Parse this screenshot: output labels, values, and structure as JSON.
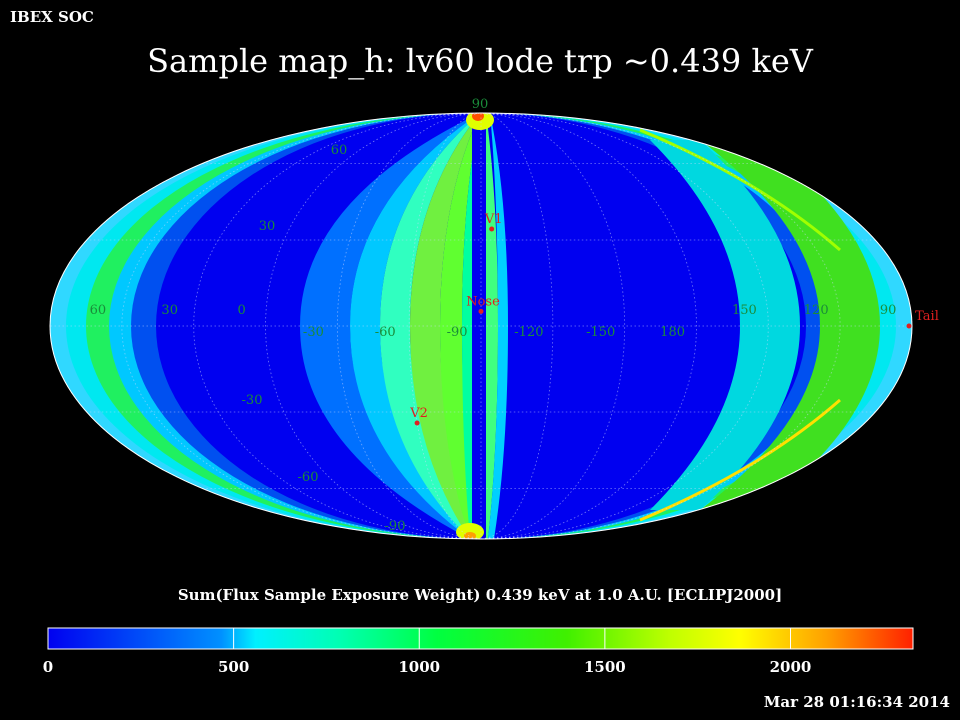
{
  "header": {
    "org": "IBEX SOC",
    "title": "Sample map_h: lv60 lode trp ~0.439 keV"
  },
  "map": {
    "projection": "mollweide",
    "coordinate_frame": "ECLIPJ2000",
    "lat_labels": [
      "90",
      "60",
      "30",
      "-30",
      "-60",
      "-90"
    ],
    "lon_labels": [
      "60",
      "30",
      "0",
      "-30",
      "-60",
      "-90",
      "-120",
      "-150",
      "180",
      "150",
      "120",
      "90"
    ],
    "markers": [
      {
        "label": "V1",
        "lon": -105,
        "lat": 34
      },
      {
        "label": "Nose",
        "lon": -100,
        "lat": 5
      },
      {
        "label": "V2",
        "lon": -70,
        "lat": -34
      },
      {
        "label": "Tail",
        "lon": 75,
        "lat": 0
      }
    ],
    "marker_color": "#e02020",
    "grid_label_color": "#1a8c3a"
  },
  "colorbar": {
    "title": "Sum(Flux Sample Exposure Weight)  0.439 keV at 1.0 A.U. [ECLIPJ2000]",
    "ticks": [
      {
        "label": "0",
        "value": 0
      },
      {
        "label": "500",
        "value": 500
      },
      {
        "label": "1000",
        "value": 1000
      },
      {
        "label": "1500",
        "value": 1500
      },
      {
        "label": "2000",
        "value": 2000
      }
    ],
    "min": 0,
    "max": 2330
  },
  "timestamp": "Mar 28 01:16:34 2014"
}
